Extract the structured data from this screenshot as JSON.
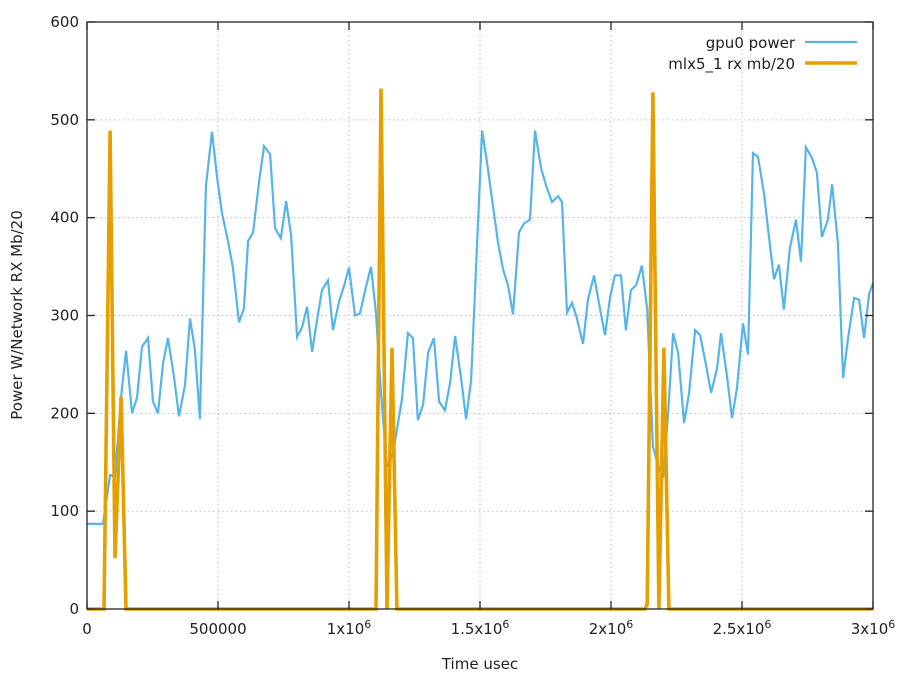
{
  "chart_data": {
    "type": "line",
    "title": "",
    "xlabel": "Time usec",
    "ylabel": "Power W/Network RX Mb/20",
    "xlim": [
      0,
      3000000
    ],
    "ylim": [
      0,
      600
    ],
    "grid": true,
    "legend_position": "top-right",
    "x_ticks": [
      {
        "value": 0,
        "text": "0",
        "sup": ""
      },
      {
        "value": 500000,
        "text": "500000",
        "sup": ""
      },
      {
        "value": 1000000,
        "text": "1x10",
        "sup": "6"
      },
      {
        "value": 1500000,
        "text": "1.5x10",
        "sup": "6"
      },
      {
        "value": 2000000,
        "text": "2x10",
        "sup": "6"
      },
      {
        "value": 2500000,
        "text": "2.5x10",
        "sup": "6"
      },
      {
        "value": 3000000,
        "text": "3x10",
        "sup": "6"
      }
    ],
    "y_ticks": [
      {
        "value": 0,
        "text": "0"
      },
      {
        "value": 100,
        "text": "100"
      },
      {
        "value": 200,
        "text": "200"
      },
      {
        "value": 300,
        "text": "300"
      },
      {
        "value": 400,
        "text": "400"
      },
      {
        "value": 500,
        "text": "500"
      },
      {
        "value": 600,
        "text": "600"
      }
    ],
    "series": [
      {
        "name": "gpu0 power",
        "color": "#56b4e9",
        "points": [
          [
            0,
            87
          ],
          [
            61000,
            87
          ],
          [
            88000,
            137
          ],
          [
            107000,
            135
          ],
          [
            130000,
            217
          ],
          [
            149000,
            264
          ],
          [
            172000,
            200
          ],
          [
            191000,
            216
          ],
          [
            210000,
            268
          ],
          [
            233000,
            277
          ],
          [
            252000,
            212
          ],
          [
            271000,
            200
          ],
          [
            290000,
            251
          ],
          [
            309000,
            277
          ],
          [
            332000,
            237
          ],
          [
            351000,
            197
          ],
          [
            374000,
            229
          ],
          [
            393000,
            297
          ],
          [
            412000,
            265
          ],
          [
            431000,
            194
          ],
          [
            454000,
            432
          ],
          [
            477000,
            488
          ],
          [
            496000,
            442
          ],
          [
            515000,
            405
          ],
          [
            538000,
            376
          ],
          [
            557000,
            349
          ],
          [
            580000,
            293
          ],
          [
            599000,
            307
          ],
          [
            615000,
            376
          ],
          [
            634000,
            385
          ],
          [
            657000,
            437
          ],
          [
            676000,
            473
          ],
          [
            699000,
            465
          ],
          [
            718000,
            389
          ],
          [
            740000,
            379
          ],
          [
            760000,
            417
          ],
          [
            779000,
            382
          ],
          [
            802000,
            278
          ],
          [
            821000,
            288
          ],
          [
            840000,
            309
          ],
          [
            859000,
            263
          ],
          [
            878000,
            295
          ],
          [
            897000,
            326
          ],
          [
            920000,
            336
          ],
          [
            939000,
            285
          ],
          [
            962000,
            314
          ],
          [
            981000,
            330
          ],
          [
            1000000,
            349
          ],
          [
            1023000,
            300
          ],
          [
            1042000,
            302
          ],
          [
            1061000,
            325
          ],
          [
            1084000,
            350
          ],
          [
            1103000,
            302
          ],
          [
            1122000,
            220
          ],
          [
            1145000,
            145
          ],
          [
            1168000,
            159
          ],
          [
            1187000,
            190
          ],
          [
            1202000,
            214
          ],
          [
            1225000,
            282
          ],
          [
            1244000,
            277
          ],
          [
            1263000,
            193
          ],
          [
            1283000,
            209
          ],
          [
            1302000,
            262
          ],
          [
            1324000,
            277
          ],
          [
            1344000,
            212
          ],
          [
            1366000,
            203
          ],
          [
            1386000,
            231
          ],
          [
            1405000,
            279
          ],
          [
            1428000,
            236
          ],
          [
            1447000,
            194
          ],
          [
            1466000,
            234
          ],
          [
            1489000,
            374
          ],
          [
            1508000,
            489
          ],
          [
            1527000,
            456
          ],
          [
            1550000,
            411
          ],
          [
            1569000,
            374
          ],
          [
            1588000,
            347
          ],
          [
            1607000,
            331
          ],
          [
            1626000,
            301
          ],
          [
            1649000,
            385
          ],
          [
            1668000,
            394
          ],
          [
            1691000,
            398
          ],
          [
            1710000,
            489
          ],
          [
            1733000,
            451
          ],
          [
            1752000,
            433
          ],
          [
            1775000,
            416
          ],
          [
            1798000,
            422
          ],
          [
            1813000,
            416
          ],
          [
            1832000,
            303
          ],
          [
            1851000,
            313
          ],
          [
            1870000,
            297
          ],
          [
            1893000,
            271
          ],
          [
            1912000,
            316
          ],
          [
            1935000,
            341
          ],
          [
            1954000,
            313
          ],
          [
            1977000,
            280
          ],
          [
            1996000,
            318
          ],
          [
            2015000,
            341
          ],
          [
            2038000,
            341
          ],
          [
            2057000,
            285
          ],
          [
            2076000,
            326
          ],
          [
            2096000,
            331
          ],
          [
            2118000,
            351
          ],
          [
            2138000,
            306
          ],
          [
            2160000,
            166
          ],
          [
            2183000,
            144
          ],
          [
            2199000,
            134
          ],
          [
            2218000,
            200
          ],
          [
            2237000,
            282
          ],
          [
            2256000,
            262
          ],
          [
            2279000,
            190
          ],
          [
            2298000,
            221
          ],
          [
            2321000,
            285
          ],
          [
            2340000,
            280
          ],
          [
            2363000,
            249
          ],
          [
            2382000,
            221
          ],
          [
            2405000,
            246
          ],
          [
            2420000,
            282
          ],
          [
            2443000,
            237
          ],
          [
            2462000,
            195
          ],
          [
            2481000,
            226
          ],
          [
            2504000,
            292
          ],
          [
            2523000,
            260
          ],
          [
            2542000,
            466
          ],
          [
            2561000,
            462
          ],
          [
            2584000,
            425
          ],
          [
            2603000,
            380
          ],
          [
            2622000,
            337
          ],
          [
            2641000,
            352
          ],
          [
            2660000,
            306
          ],
          [
            2683000,
            369
          ],
          [
            2706000,
            398
          ],
          [
            2725000,
            355
          ],
          [
            2744000,
            472
          ],
          [
            2767000,
            461
          ],
          [
            2786000,
            446
          ],
          [
            2805000,
            380
          ],
          [
            2828000,
            398
          ],
          [
            2844000,
            434
          ],
          [
            2866000,
            374
          ],
          [
            2886000,
            236
          ],
          [
            2905000,
            277
          ],
          [
            2928000,
            318
          ],
          [
            2947000,
            316
          ],
          [
            2966000,
            277
          ],
          [
            2985000,
            322
          ],
          [
            3000000,
            333
          ]
        ]
      },
      {
        "name": "mlx5_1 rx mb/20",
        "color": "#e69f00",
        "points": [
          [
            0,
            0
          ],
          [
            65000,
            0
          ],
          [
            88000,
            489
          ],
          [
            107000,
            52
          ],
          [
            130000,
            217
          ],
          [
            149000,
            0
          ],
          [
            1103000,
            0
          ],
          [
            1122000,
            532
          ],
          [
            1145000,
            0
          ],
          [
            1164000,
            267
          ],
          [
            1183000,
            0
          ],
          [
            2130000,
            0
          ],
          [
            2138000,
            5
          ],
          [
            2160000,
            528
          ],
          [
            2183000,
            0
          ],
          [
            2202000,
            267
          ],
          [
            2221000,
            0
          ],
          [
            3000000,
            0
          ]
        ]
      }
    ]
  }
}
